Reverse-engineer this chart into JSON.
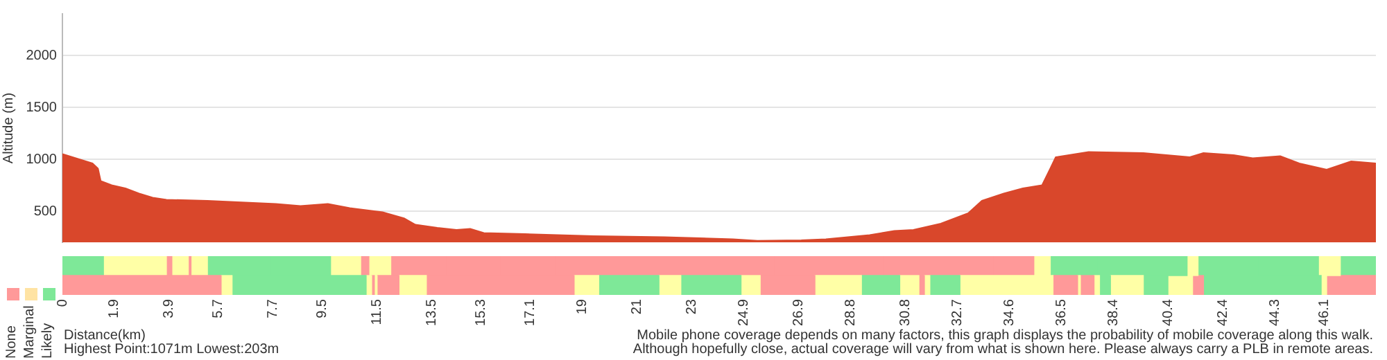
{
  "chart_data": [
    {
      "type": "area",
      "ylabel": "Altitude (m)",
      "color": "#d9472b",
      "grid": "y",
      "tick_labels": "y",
      "x": [
        0,
        1.1,
        1.3,
        1.4,
        1.8,
        2.3,
        2.8,
        3.3,
        3.8,
        5.3,
        7.8,
        8.7,
        9.7,
        10.5,
        11.7,
        12.5,
        12.9,
        13.7,
        14.4,
        14.9,
        15.4,
        16.9,
        19.4,
        22.0,
        24.5,
        25.4,
        27.0,
        27.9,
        29.5,
        30.4,
        31.1,
        32.1,
        33.1,
        33.6,
        34.4,
        35.1,
        35.8,
        36.1,
        36.3,
        37.5,
        39.5,
        41.2,
        41.7,
        42.8,
        43.5,
        44.5,
        45.2,
        46.2,
        47.1,
        48
      ],
      "values": [
        1050,
        960,
        910,
        790,
        750,
        720,
        670,
        630,
        610,
        600,
        570,
        550,
        570,
        530,
        490,
        430,
        370,
        340,
        320,
        330,
        290,
        280,
        260,
        250,
        230,
        215,
        220,
        230,
        270,
        310,
        320,
        380,
        480,
        600,
        670,
        720,
        750,
        910,
        1020,
        1070,
        1060,
        1020,
        1060,
        1040,
        1010,
        1030,
        960,
        900,
        980,
        960
      ],
      "xlim": [
        0,
        48
      ],
      "ylim": [
        200,
        2400
      ],
      "yticks": [
        500,
        1000,
        1500,
        2000
      ],
      "annotations": [
        "Highest Point:1071m Lowest:203m",
        "Mobile phone coverage depends on many factors, this graph displays the probability of mobile coverage along this walk.",
        "Although hopefully close, actual coverage will vary from what is shown here. Please always carry a PLB in remote areas."
      ]
    },
    {
      "type": "bar",
      "orientation": "horizontal",
      "stacked": true,
      "xlabel": "Distance(km)",
      "categories": [
        null,
        null
      ],
      "xlim": [
        0,
        48
      ],
      "xticks": [
        0,
        1.9,
        3.9,
        5.7,
        7.7,
        9.5,
        11.5,
        13.5,
        15.3,
        17.1,
        19,
        21,
        23,
        24.9,
        26.9,
        28.8,
        30.8,
        32.7,
        34.6,
        36.5,
        38.4,
        40.4,
        42.4,
        44.3,
        46.1
      ],
      "annotations": [
        "None",
        "Marginal",
        "Likely"
      ],
      "series": [
        {
          "values": [
            0.8,
            5.8
          ],
          "colors": [
            "#7ee898",
            "#ff9999"
          ]
        },
        {
          "values": [
            0.7,
            0.4
          ],
          "colors": [
            "#7ee898",
            "#ffffa6"
          ]
        },
        {
          "values": [
            1.2,
            4.9
          ],
          "colors": [
            "#ffffa6",
            "#7ee898"
          ]
        },
        {
          "values": [
            1.1,
            0.2
          ],
          "colors": [
            "#ffffa6",
            "#ffffa6"
          ]
        },
        {
          "values": [
            0.2,
            0.1
          ],
          "colors": [
            "#ff9999",
            "#ff9999"
          ]
        },
        {
          "values": [
            0.6,
            0.1
          ],
          "colors": [
            "#ffffa6",
            "#ffffa6"
          ]
        },
        {
          "values": [
            0.1,
            0.8
          ],
          "colors": [
            "#ff9999",
            "#ff9999"
          ]
        },
        {
          "values": [
            0.6,
            1.0
          ],
          "colors": [
            "#ffffa6",
            "#ffffa6"
          ]
        },
        {
          "values": [
            2.3,
            5.4
          ],
          "colors": [
            "#7ee898",
            "#ff9999"
          ]
        },
        {
          "values": [
            2.2,
            0.9
          ],
          "colors": [
            "#7ee898",
            "#ffffa6"
          ]
        },
        {
          "values": [
            1.1,
            2.2
          ],
          "colors": [
            "#ffffa6",
            "#7ee898"
          ]
        },
        {
          "values": [
            0.3,
            0.8
          ],
          "colors": [
            "#ff9999",
            "#ffffa6"
          ]
        },
        {
          "values": [
            0.8,
            2.2
          ],
          "colors": [
            "#ffffa6",
            "#7ee898"
          ]
        },
        {
          "values": [
            2,
            0.7
          ],
          "colors": [
            "#ff9999",
            "#ffffa6"
          ]
        },
        {
          "values": [
            2,
            2.0
          ],
          "colors": [
            "#ff9999",
            "#ff9999"
          ]
        },
        {
          "values": [
            2,
            1.7
          ],
          "colors": [
            "#ff9999",
            "#ffffa6"
          ]
        },
        {
          "values": [
            2,
            1.4
          ],
          "colors": [
            "#ff9999",
            "#7ee898"
          ]
        },
        {
          "values": [
            2,
            0.7
          ],
          "colors": [
            "#ff9999",
            "#ffffa6"
          ]
        },
        {
          "values": [
            2,
            0.2
          ],
          "colors": [
            "#ff9999",
            "#ff9999"
          ]
        },
        {
          "values": [
            2,
            0.2
          ],
          "colors": [
            "#ff9999",
            "#ffffa6"
          ]
        },
        {
          "values": [
            2,
            1.1
          ],
          "colors": [
            "#ff9999",
            "#7ee898"
          ]
        },
        {
          "values": [
            2,
            3.4
          ],
          "colors": [
            "#ff9999",
            "#ffffa6"
          ]
        },
        {
          "values": [
            2,
            0.9
          ],
          "colors": [
            "#ff9999",
            "#ff9999"
          ]
        },
        {
          "values": [
            2,
            0.1
          ],
          "colors": [
            "#ff9999",
            "#ffffa6"
          ]
        },
        {
          "values": [
            1.5,
            0.5
          ],
          "colors": [
            "#ff9999",
            "#ff9999"
          ]
        },
        {
          "values": [
            0.6,
            0.2
          ],
          "colors": [
            "#ffffa6",
            "#ffffa6"
          ]
        },
        {
          "values": [
            1.7,
            0.4
          ],
          "colors": [
            "#7ee898",
            "#7ee898"
          ]
        },
        {
          "values": [
            1.7,
            1.2
          ],
          "colors": [
            "#7ee898",
            "#ffffa6"
          ]
        },
        {
          "values": [
            1.6,
            0.9
          ],
          "colors": [
            "#7ee898",
            "#7ee898"
          ]
        },
        {
          "values": [
            0.4,
            0.9
          ],
          "colors": [
            "#ffffa6",
            "#ffffa6"
          ]
        },
        {
          "values": [
            2.2,
            0.4
          ],
          "colors": [
            "#7ee898",
            "#ff9999"
          ]
        },
        {
          "values": [
            2.2,
            4.3
          ],
          "colors": [
            "#7ee898",
            "#7ee898"
          ]
        },
        {
          "values": [
            0.8,
            0.2
          ],
          "colors": [
            "#ffffa6",
            "#ffffa6"
          ]
        },
        {
          "values": [
            1.3,
            1.8
          ],
          "colors": [
            "#7ee898",
            "#ff9999"
          ]
        }
      ]
    }
  ]
}
